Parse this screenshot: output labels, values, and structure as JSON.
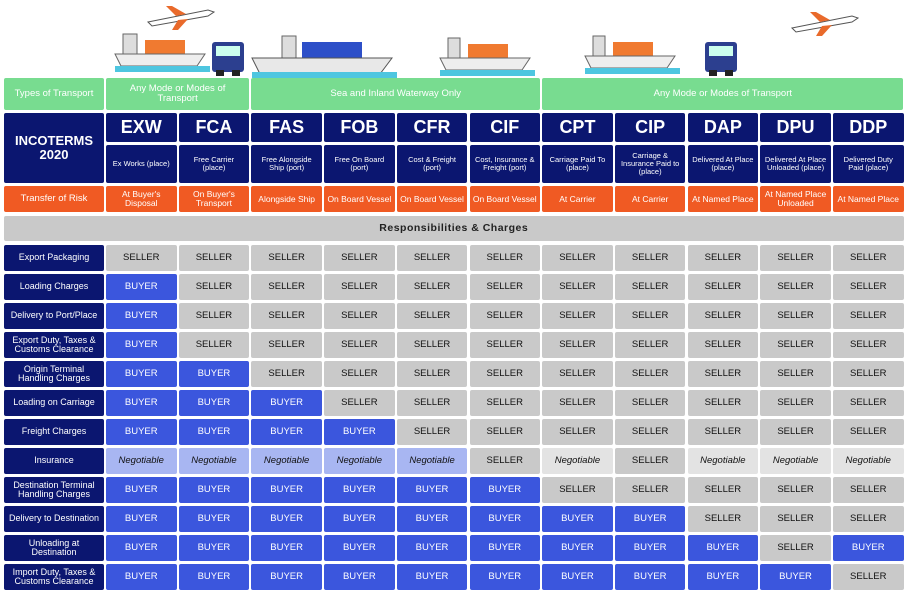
{
  "header": {
    "transport_label": "Types of Transport",
    "transport_groups": [
      "Any Mode or Modes of Transport",
      "Sea and Inland Waterway Only",
      "Any Mode or Modes of Transport"
    ],
    "title": "INCOTERMS 2020",
    "risk_label": "Transfer of Risk",
    "section_title": "Responsibilities & Charges"
  },
  "terms": [
    {
      "code": "EXW",
      "description": "Ex Works (place)",
      "risk": "At Buyer's Disposal"
    },
    {
      "code": "FCA",
      "description": "Free Carrier (place)",
      "risk": "On Buyer's Transport"
    },
    {
      "code": "FAS",
      "description": "Free Alongside Ship (port)",
      "risk": "Alongside Ship"
    },
    {
      "code": "FOB",
      "description": "Free On Board (port)",
      "risk": "On Board Vessel"
    },
    {
      "code": "CFR",
      "description": "Cost & Freight (port)",
      "risk": "On Board Vessel"
    },
    {
      "code": "CIF",
      "description": "Cost, Insurance & Freight (port)",
      "risk": "On Board Vessel"
    },
    {
      "code": "CPT",
      "description": "Carriage Paid To (place)",
      "risk": "At Carrier"
    },
    {
      "code": "CIP",
      "description": "Carriage & Insurance Paid to (place)",
      "risk": "At Carrier"
    },
    {
      "code": "DAP",
      "description": "Delivered At Place (place)",
      "risk": "At Named Place"
    },
    {
      "code": "DPU",
      "description": "Delivered At Place Unloaded (place)",
      "risk": "At Named Place Unloaded"
    },
    {
      "code": "DDP",
      "description": "Delivered Duty Paid (place)",
      "risk": "At Named Place"
    }
  ],
  "rows": [
    {
      "label": "Export Packaging",
      "cells": [
        "SELLER",
        "SELLER",
        "SELLER",
        "SELLER",
        "SELLER",
        "SELLER",
        "SELLER",
        "SELLER",
        "SELLER",
        "SELLER",
        "SELLER"
      ]
    },
    {
      "label": "Loading Charges",
      "cells": [
        "BUYER",
        "SELLER",
        "SELLER",
        "SELLER",
        "SELLER",
        "SELLER",
        "SELLER",
        "SELLER",
        "SELLER",
        "SELLER",
        "SELLER"
      ]
    },
    {
      "label": "Delivery to Port/Place",
      "cells": [
        "BUYER",
        "SELLER",
        "SELLER",
        "SELLER",
        "SELLER",
        "SELLER",
        "SELLER",
        "SELLER",
        "SELLER",
        "SELLER",
        "SELLER"
      ]
    },
    {
      "label": "Export Duty, Taxes & Customs Clearance",
      "cells": [
        "BUYER",
        "SELLER",
        "SELLER",
        "SELLER",
        "SELLER",
        "SELLER",
        "SELLER",
        "SELLER",
        "SELLER",
        "SELLER",
        "SELLER"
      ]
    },
    {
      "label": "Origin Terminal Handling Charges",
      "cells": [
        "BUYER",
        "BUYER",
        "SELLER",
        "SELLER",
        "SELLER",
        "SELLER",
        "SELLER",
        "SELLER",
        "SELLER",
        "SELLER",
        "SELLER"
      ]
    },
    {
      "label": "Loading on Carriage",
      "cells": [
        "BUYER",
        "BUYER",
        "BUYER",
        "SELLER",
        "SELLER",
        "SELLER",
        "SELLER",
        "SELLER",
        "SELLER",
        "SELLER",
        "SELLER"
      ]
    },
    {
      "label": "Freight Charges",
      "cells": [
        "BUYER",
        "BUYER",
        "BUYER",
        "BUYER",
        "SELLER",
        "SELLER",
        "SELLER",
        "SELLER",
        "SELLER",
        "SELLER",
        "SELLER"
      ]
    },
    {
      "label": "Insurance",
      "cells": [
        "Negotiable",
        "Negotiable",
        "Negotiable",
        "Negotiable",
        "Negotiable",
        "SELLER",
        "Negotiable",
        "SELLER",
        "Negotiable",
        "Negotiable",
        "Negotiable"
      ]
    },
    {
      "label": "Destination Terminal Handling Charges",
      "cells": [
        "BUYER",
        "BUYER",
        "BUYER",
        "BUYER",
        "BUYER",
        "BUYER",
        "SELLER",
        "SELLER",
        "SELLER",
        "SELLER",
        "SELLER"
      ]
    },
    {
      "label": "Delivery to Destination",
      "cells": [
        "BUYER",
        "BUYER",
        "BUYER",
        "BUYER",
        "BUYER",
        "BUYER",
        "BUYER",
        "BUYER",
        "SELLER",
        "SELLER",
        "SELLER"
      ]
    },
    {
      "label": "Unloading at Destination",
      "cells": [
        "BUYER",
        "BUYER",
        "BUYER",
        "BUYER",
        "BUYER",
        "BUYER",
        "BUYER",
        "BUYER",
        "BUYER",
        "SELLER",
        "BUYER"
      ]
    },
    {
      "label": "Import Duty, Taxes & Customs Clearance",
      "cells": [
        "BUYER",
        "BUYER",
        "BUYER",
        "BUYER",
        "BUYER",
        "BUYER",
        "BUYER",
        "BUYER",
        "BUYER",
        "BUYER",
        "SELLER"
      ]
    }
  ],
  "colors": {
    "green": "#78dc90",
    "navy": "#0b1670",
    "orange": "#f05a23",
    "grey": "#c9c9c9",
    "buyer": "#3b56dd",
    "negotiable_sea": "#a8b6f2",
    "negotiable_any": "#e3e3e3"
  }
}
